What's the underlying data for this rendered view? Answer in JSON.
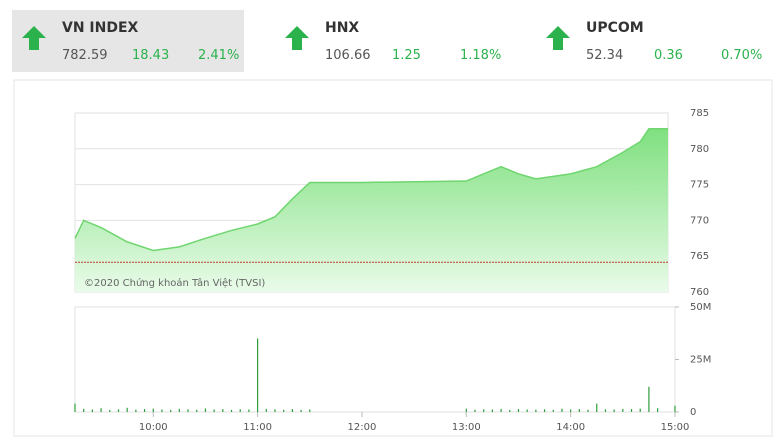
{
  "indices": [
    {
      "name": "VN INDEX",
      "value": "782.59",
      "change": "18.43",
      "percent": "2.41%"
    },
    {
      "name": "HNX",
      "value": "106.66",
      "change": "1.25",
      "percent": "1.18%"
    },
    {
      "name": "UPCOM",
      "value": "52.34",
      "change": "0.36",
      "percent": "0.70%"
    }
  ],
  "chart_data": [
    {
      "type": "area",
      "watermark": "©2020 Chứng khoán Tân Việt (TVSI)",
      "color": "#6fd66f",
      "x": [
        "09:15",
        "09:20",
        "09:30",
        "09:45",
        "10:00",
        "10:15",
        "10:30",
        "10:45",
        "11:00",
        "11:10",
        "11:20",
        "11:30",
        "12:00",
        "13:00",
        "13:10",
        "13:20",
        "13:30",
        "13:40",
        "14:00",
        "14:15",
        "14:30",
        "14:40",
        "14:45",
        "14:56"
      ],
      "values": [
        767.5,
        770,
        769,
        767,
        765.8,
        766.3,
        767.5,
        768.6,
        769.5,
        770.5,
        773,
        775.3,
        775.3,
        775.5,
        776.5,
        777.5,
        776.5,
        775.8,
        776.5,
        777.5,
        779.5,
        781,
        782.8,
        782.8
      ],
      "reference": 764.16,
      "xlim": [
        "09:15",
        "15:00"
      ],
      "ylim": [
        760,
        785
      ],
      "yticks": [
        760,
        765,
        770,
        775,
        780,
        785
      ],
      "grid": true
    },
    {
      "type": "bar",
      "color": "#2e9e3e",
      "x": [
        "09:15",
        "09:20",
        "09:25",
        "09:30",
        "09:35",
        "09:40",
        "09:45",
        "09:50",
        "09:55",
        "10:00",
        "10:05",
        "10:10",
        "10:15",
        "10:20",
        "10:25",
        "10:30",
        "10:35",
        "10:40",
        "10:45",
        "10:50",
        "10:55",
        "11:00",
        "11:05",
        "11:10",
        "11:15",
        "11:20",
        "11:25",
        "11:30",
        "13:00",
        "13:05",
        "13:10",
        "13:15",
        "13:20",
        "13:25",
        "13:30",
        "13:35",
        "13:40",
        "13:45",
        "13:50",
        "13:55",
        "14:00",
        "14:05",
        "14:10",
        "14:15",
        "14:20",
        "14:25",
        "14:30",
        "14:35",
        "14:40",
        "14:45",
        "14:50",
        "15:00"
      ],
      "values": [
        4000000,
        1500000,
        1200000,
        1800000,
        1000000,
        1300000,
        2000000,
        1100000,
        1400000,
        1600000,
        1200000,
        1000000,
        1500000,
        1300000,
        1100000,
        1700000,
        1200000,
        1400000,
        1000000,
        1300000,
        1200000,
        35000000,
        1500000,
        1300000,
        1100000,
        1400000,
        1000000,
        1200000,
        1600000,
        1100000,
        1300000,
        1200000,
        1500000,
        1000000,
        1400000,
        1200000,
        1100000,
        1300000,
        1000000,
        1600000,
        1200000,
        1400000,
        1100000,
        4000000,
        1300000,
        1200000,
        1500000,
        1400000,
        1600000,
        12000000,
        1800000,
        3000000
      ],
      "xlim": [
        "09:15",
        "15:00"
      ],
      "ylim": [
        0,
        50000000
      ],
      "yticks": [
        {
          "value": 0,
          "label": "0"
        },
        {
          "value": 25000000,
          "label": "25M"
        },
        {
          "value": 50000000,
          "label": "50M"
        }
      ],
      "xticks": [
        "10:00",
        "11:00",
        "12:00",
        "13:00",
        "14:00",
        "15:00"
      ]
    }
  ]
}
